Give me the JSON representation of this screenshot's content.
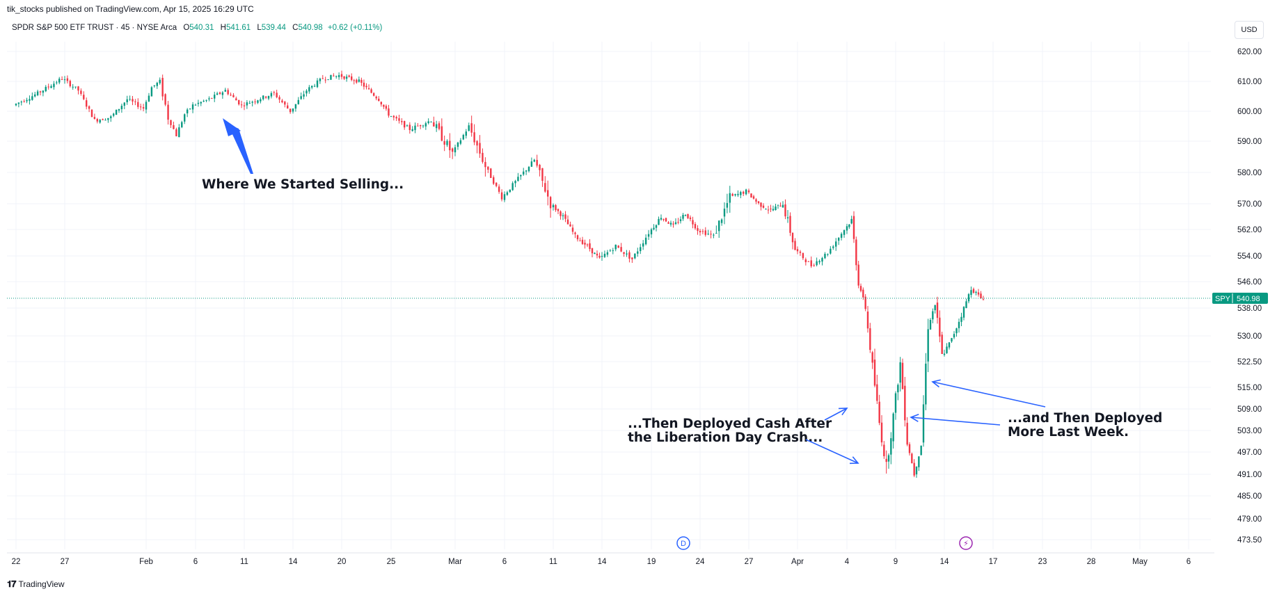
{
  "header": {
    "published": "tik_stocks published on TradingView.com, Apr 15, 2025 16:29 UTC"
  },
  "legend": {
    "symbol": "SPDR S&P 500 ETF TRUST · 45 · NYSE Arca",
    "open_label": "O",
    "open": "540.31",
    "high_label": "H",
    "high": "541.61",
    "low_label": "L",
    "low": "539.44",
    "close_label": "C",
    "close": "540.98",
    "change": "+0.62 (+0.11%)"
  },
  "currency": "USD",
  "price_tag": {
    "ticker": "SPY",
    "value": "540.98"
  },
  "footer": {
    "brand": "TradingView"
  },
  "colors": {
    "up": "#089981",
    "down": "#f23645",
    "arrow": "#2962ff",
    "marker_d": "#2962ff",
    "marker_e": "#9c27b0"
  },
  "markers": {
    "dividend": "D",
    "earnings": "⚡"
  },
  "annotations": [
    {
      "id": "selling",
      "lines": [
        "Where We Started Selling..."
      ]
    },
    {
      "id": "deployed1",
      "lines": [
        "...Then Deployed Cash After",
        "the Liberation Day Crash..."
      ]
    },
    {
      "id": "deployed2",
      "lines": [
        "...and Then Deployed",
        "More Last Week."
      ]
    }
  ],
  "chart_data": {
    "type": "candlestick",
    "y_ticks": [
      "620.00",
      "610.00",
      "600.00",
      "590.00",
      "580.00",
      "570.00",
      "562.00",
      "554.00",
      "546.00",
      "538.00",
      "530.00",
      "522.50",
      "515.00",
      "509.00",
      "503.00",
      "497.00",
      "491.00",
      "485.00",
      "479.00",
      "473.50"
    ],
    "x_ticks": [
      "22",
      "27",
      "Feb",
      "6",
      "11",
      "14",
      "20",
      "25",
      "Mar",
      "6",
      "11",
      "14",
      "19",
      "24",
      "27",
      "Apr",
      "4",
      "9",
      "14",
      "17",
      "23",
      "28",
      "May",
      "6"
    ],
    "last_price": 540.98,
    "path": [
      [
        "22",
        602
      ],
      [
        "22",
        606
      ],
      [
        "27",
        611
      ],
      [
        "27",
        607
      ],
      [
        "27",
        597
      ],
      [
        "27",
        598
      ],
      [
        "27",
        604
      ],
      [
        "Feb",
        601
      ],
      [
        "Feb",
        608
      ],
      [
        "Feb",
        610
      ],
      [
        "Feb",
        598
      ],
      [
        "Feb",
        592
      ],
      [
        "Feb",
        599
      ],
      [
        "6",
        602
      ],
      [
        "6",
        604
      ],
      [
        "6",
        607
      ],
      [
        "11",
        602
      ],
      [
        "11",
        604
      ],
      [
        "11",
        606
      ],
      [
        "14",
        600
      ],
      [
        "14",
        607
      ],
      [
        "14",
        611
      ],
      [
        "20",
        612
      ],
      [
        "20",
        611
      ],
      [
        "20",
        610
      ],
      [
        "20",
        607
      ],
      [
        "20",
        604
      ],
      [
        "25",
        599
      ],
      [
        "25",
        594
      ],
      [
        "25",
        597
      ],
      [
        "Mar",
        586
      ],
      [
        "Mar",
        595
      ],
      [
        "Mar",
        582
      ],
      [
        "6",
        572
      ],
      [
        "6",
        578
      ],
      [
        "6",
        584
      ],
      [
        "11",
        570
      ],
      [
        "11",
        566
      ],
      [
        "11",
        560
      ],
      [
        "11",
        557
      ],
      [
        "14",
        553
      ],
      [
        "14",
        557
      ],
      [
        "14",
        553
      ],
      [
        "19",
        561
      ],
      [
        "19",
        566
      ],
      [
        "19",
        563
      ],
      [
        "19",
        567
      ],
      [
        "24",
        562
      ],
      [
        "24",
        560
      ],
      [
        "24",
        572
      ],
      [
        "27",
        574
      ],
      [
        "27",
        570
      ],
      [
        "27",
        568
      ],
      [
        "27",
        570
      ],
      [
        "Apr",
        556
      ],
      [
        "Apr",
        551
      ],
      [
        "Apr",
        555
      ],
      [
        "4",
        562
      ],
      [
        "4",
        565
      ],
      [
        "4",
        546
      ],
      [
        "4",
        538
      ],
      [
        "4",
        521
      ],
      [
        "4",
        505
      ],
      [
        "4",
        493
      ],
      [
        "9",
        507
      ],
      [
        "9",
        522
      ],
      [
        "9",
        500
      ],
      [
        "9",
        491
      ],
      [
        "9",
        499
      ],
      [
        "9",
        533
      ],
      [
        "9",
        539
      ],
      [
        "14",
        524
      ],
      [
        "14",
        529
      ],
      [
        "14",
        536
      ],
      [
        "14",
        544
      ],
      [
        "14",
        541
      ]
    ]
  }
}
